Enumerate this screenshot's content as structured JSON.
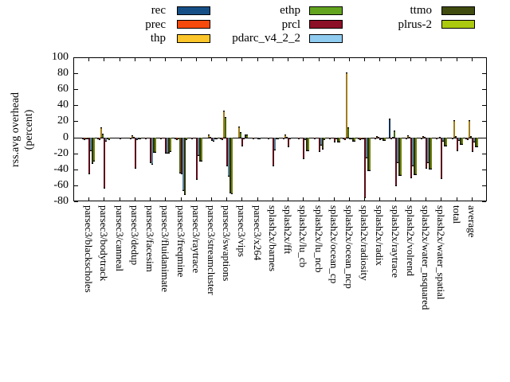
{
  "figure": {
    "background": "#ffffff",
    "ylabel_lines": [
      "rss.avg overhead",
      "(percent)"
    ]
  },
  "chart_data": {
    "type": "bar",
    "title": "",
    "xlabel": "",
    "ylabel": "rss.avg overhead (percent)",
    "ylim": [
      -80,
      100
    ],
    "ytick_step": 20,
    "ytick_labels": [
      "-80",
      "-60",
      "-40",
      "-20",
      "0",
      "20",
      "40",
      "60",
      "80",
      "100"
    ],
    "grid": false,
    "legend_position": "top",
    "series": [
      {
        "name": "rec",
        "color": "#164f86"
      },
      {
        "name": "prec",
        "color": "#f64a0c"
      },
      {
        "name": "thp",
        "color": "#fcc62a"
      },
      {
        "name": "ethp",
        "color": "#63a41f"
      },
      {
        "name": "prcl",
        "color": "#8c1127"
      },
      {
        "name": "pdarc_v4_2_2",
        "color": "#90cbf0"
      },
      {
        "name": "ttmo",
        "color": "#3f4b0f"
      },
      {
        "name": "plrus-2",
        "color": "#abc90f"
      }
    ],
    "categories": [
      "parsec3/blackscholes",
      "parsec3/bodytrack",
      "parsec3/canneal",
      "parsec3/dedup",
      "parsec3/facesim",
      "parsec3/fluidanimate",
      "parsec3/freqmine",
      "parsec3/raytrace",
      "parsec3/streamcluster",
      "parsec3/swaptions",
      "parsec3/vips",
      "parsec3/x264",
      "splash2x/barnes",
      "splash2x/fft",
      "splash2x/lu_cb",
      "splash2x/lu_ncb",
      "splash2x/ocean_cp",
      "splash2x/ocean_ncp",
      "splash2x/radiosity",
      "splash2x/radix",
      "splash2x/raytrace",
      "splash2x/volrend",
      "splash2x/water_nsquared",
      "splash2x/water_spatial",
      "total",
      "average"
    ],
    "values_by_category": [
      [
        -2,
        -3,
        -2,
        -2,
        -46,
        -17,
        -33,
        -30
      ],
      [
        -2,
        -3,
        12,
        5,
        -64,
        -5,
        -2,
        -3
      ],
      [
        -1,
        -1,
        -1,
        -1,
        -2,
        -1,
        -1,
        -1
      ],
      [
        -1,
        -2,
        3,
        1,
        -39,
        -3,
        -2,
        -2
      ],
      [
        -1,
        -2,
        -1,
        -1,
        -32,
        -34,
        -19,
        -19
      ],
      [
        -1,
        -2,
        -1,
        -1,
        -20,
        -20,
        -20,
        -18
      ],
      [
        -2,
        -3,
        -2,
        -45,
        -46,
        -67,
        -72,
        -3
      ],
      [
        -1,
        -2,
        -1,
        -1,
        -53,
        -23,
        -30,
        -30
      ],
      [
        -1,
        -1,
        4,
        1,
        -4,
        -5,
        -2,
        -2
      ],
      [
        -2,
        -3,
        33,
        25,
        -36,
        -49,
        -70,
        -71
      ],
      [
        -1,
        -1,
        13,
        7,
        -11,
        -2,
        4,
        4
      ],
      [
        -1,
        -2,
        -1,
        -1,
        -2,
        -2,
        -1,
        -1
      ],
      [
        -1,
        -2,
        -1,
        -1,
        -36,
        -16,
        -2,
        -2
      ],
      [
        -1,
        -2,
        4,
        1,
        -12,
        -2,
        -1,
        -1
      ],
      [
        -1,
        -2,
        -1,
        -1,
        -27,
        -3,
        -17,
        -17
      ],
      [
        -1,
        -2,
        -1,
        -1,
        -18,
        -10,
        -15,
        -3
      ],
      [
        -1,
        -2,
        -1,
        -1,
        -6,
        -2,
        -6,
        -6
      ],
      [
        -2,
        -3,
        81,
        12,
        -2,
        -2,
        -5,
        -5
      ],
      [
        -2,
        -3,
        -2,
        -2,
        -76,
        -26,
        -42,
        -42
      ],
      [
        -1,
        -2,
        2,
        1,
        -3,
        -2,
        -4,
        -4
      ],
      [
        23,
        -2,
        1,
        9,
        -61,
        -32,
        -48,
        -48
      ],
      [
        -1,
        -2,
        3,
        1,
        -51,
        -36,
        -47,
        -47
      ],
      [
        -1,
        -2,
        2,
        1,
        -39,
        -32,
        -40,
        -40
      ],
      [
        -1,
        -2,
        -1,
        1,
        -52,
        -5,
        -11,
        -11
      ],
      [
        -1,
        -2,
        21,
        2,
        -17,
        -4,
        -9,
        -9
      ],
      [
        -2,
        -3,
        21,
        2,
        -18,
        -6,
        -12,
        -12
      ]
    ]
  }
}
